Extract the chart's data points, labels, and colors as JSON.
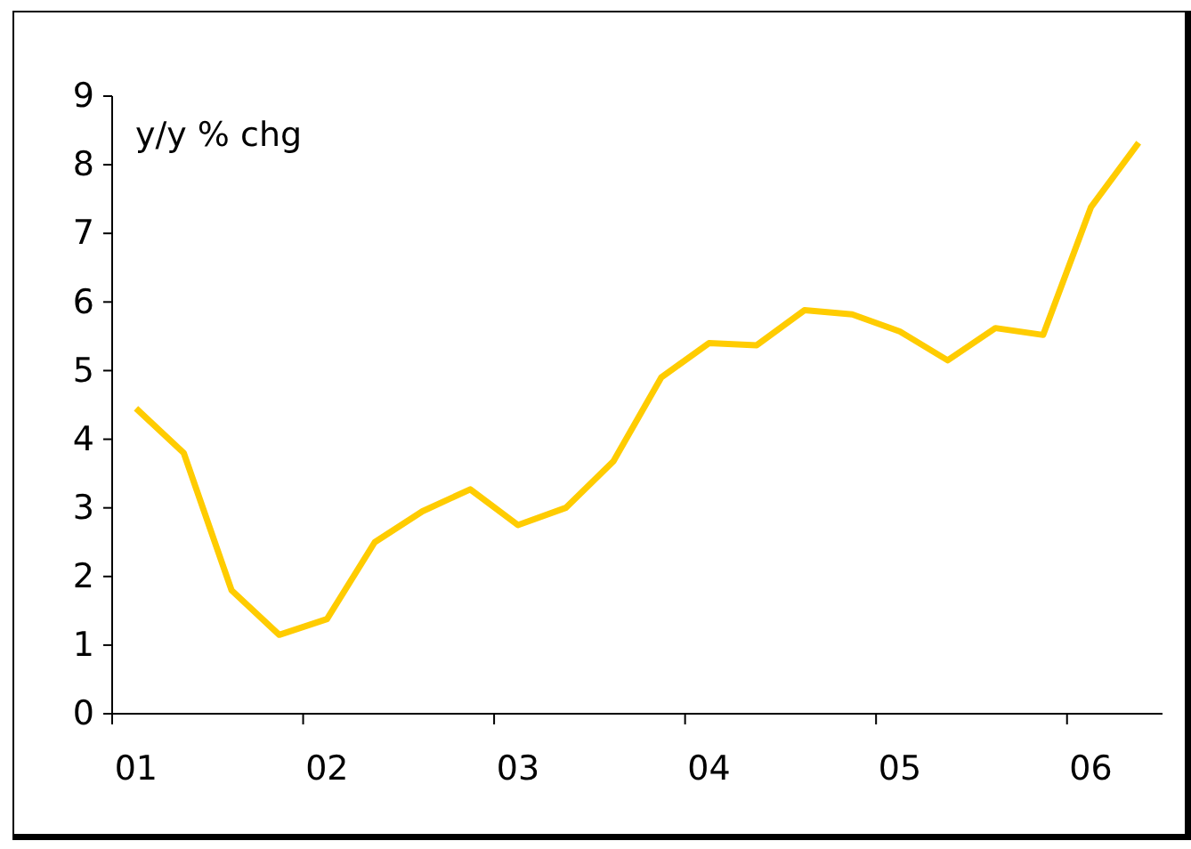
{
  "chart_data": {
    "type": "line",
    "ylabel": "y/y % chg",
    "categories": [
      "01",
      null,
      null,
      null,
      "02",
      null,
      null,
      null,
      "03",
      null,
      null,
      null,
      "04",
      null,
      null,
      null,
      "05",
      null,
      null,
      null,
      "06",
      null
    ],
    "series": [
      {
        "color": "#ffcc00",
        "values": [
          4.45,
          3.8,
          1.8,
          1.15,
          1.38,
          2.5,
          2.95,
          3.27,
          2.75,
          3.0,
          3.68,
          4.9,
          5.4,
          5.37,
          5.88,
          5.82,
          5.57,
          5.15,
          5.62,
          5.52,
          7.38,
          8.32
        ]
      }
    ],
    "ylim": [
      0,
      9
    ],
    "yticks": [
      0,
      1,
      2,
      3,
      4,
      5,
      6,
      7,
      8,
      9
    ],
    "grid": false,
    "marker": "none",
    "line_style": "solid"
  }
}
